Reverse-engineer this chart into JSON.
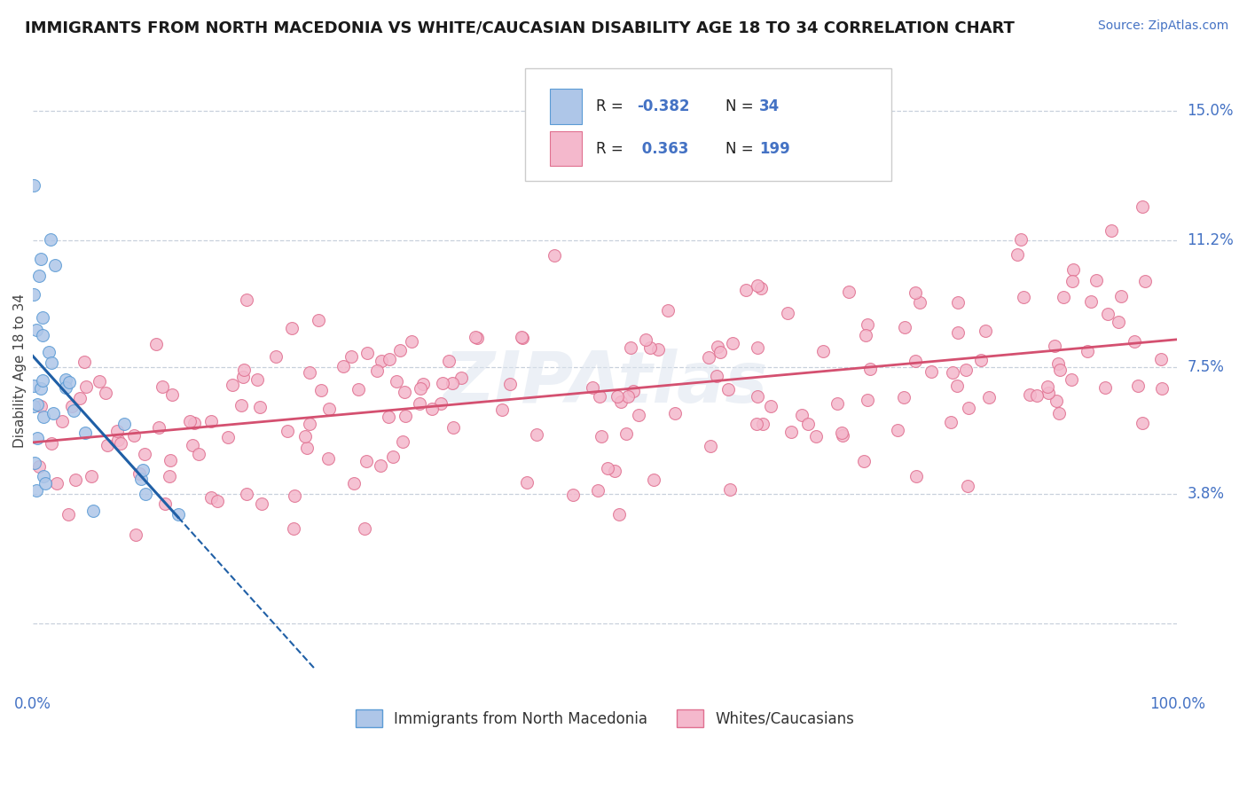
{
  "title": "IMMIGRANTS FROM NORTH MACEDONIA VS WHITE/CAUCASIAN DISABILITY AGE 18 TO 34 CORRELATION CHART",
  "source_text": "Source: ZipAtlas.com",
  "ylabel": "Disability Age 18 to 34",
  "ytick_labels": [
    "3.8%",
    "7.5%",
    "11.2%",
    "15.0%"
  ],
  "ytick_positions": [
    0.038,
    0.075,
    0.112,
    0.15
  ],
  "grid_lines": [
    0.0,
    0.038,
    0.075,
    0.112,
    0.15
  ],
  "xlim": [
    0.0,
    1.0
  ],
  "ylim": [
    -0.02,
    0.168
  ],
  "r1": -0.382,
  "n1": 34,
  "r2": 0.363,
  "n2": 199,
  "color_blue_fill": "#aec6e8",
  "color_blue_edge": "#5b9bd5",
  "color_blue_line": "#1f5fa6",
  "color_pink_fill": "#f4b8cc",
  "color_pink_edge": "#e07090",
  "color_pink_line": "#d45070",
  "color_text_blue": "#4472C4",
  "color_grid": "#c8d0dc",
  "background": "#ffffff",
  "title_fontsize": 13,
  "watermark": "ZIPAtlas"
}
